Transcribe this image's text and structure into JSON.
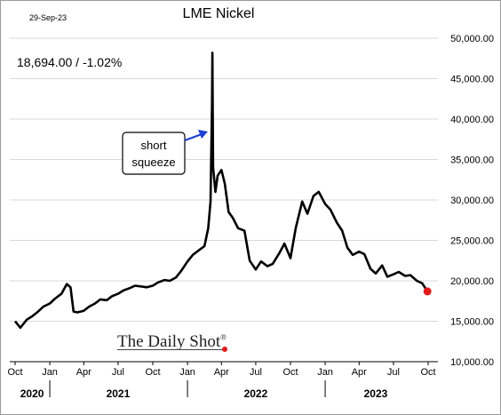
{
  "header": {
    "date_stamp": "29-Sep-23",
    "title": "LME Nickel",
    "readout": "18,694.00  /  -1.02%"
  },
  "annotation": {
    "lines": [
      "short",
      "squeeze"
    ]
  },
  "brand": {
    "name": "The Daily Shot",
    "mark": "®"
  },
  "chart_data": {
    "type": "line",
    "title": "LME Nickel",
    "xlabel": "",
    "ylabel": "",
    "ylim": [
      10000,
      50000
    ],
    "y_ticks": [
      "50,000.00",
      "45,000.00",
      "40,000.00",
      "35,000.00",
      "30,000.00",
      "25,000.00",
      "20,000.00",
      "15,000.00",
      "10,000.00"
    ],
    "x_ticks": [
      "Oct",
      "Jan",
      "Apr",
      "Jul",
      "Oct",
      "Jan",
      "Apr",
      "Jul",
      "Oct",
      "Jan",
      "Apr",
      "Jul",
      "Oct"
    ],
    "year_labels": [
      "2020",
      "2021",
      "2022",
      "2023"
    ],
    "grid": true,
    "last_point_color": "#e01b1b",
    "line_color": "#000000",
    "series": [
      {
        "x": [
          "2020-10-01",
          "2020-10-15",
          "2020-11-01",
          "2020-11-15",
          "2020-12-01",
          "2020-12-15",
          "2021-01-01",
          "2021-01-15",
          "2021-02-01",
          "2021-02-15",
          "2021-02-25",
          "2021-03-05",
          "2021-03-15",
          "2021-04-01",
          "2021-04-15",
          "2021-05-01",
          "2021-05-15",
          "2021-06-01",
          "2021-06-15",
          "2021-07-01",
          "2021-07-15",
          "2021-08-01",
          "2021-08-15",
          "2021-09-01",
          "2021-09-15",
          "2021-10-01",
          "2021-10-15",
          "2021-11-01",
          "2021-11-15",
          "2021-12-01",
          "2021-12-15",
          "2022-01-01",
          "2022-01-15",
          "2022-02-01",
          "2022-02-15",
          "2022-02-25",
          "2022-03-03",
          "2022-03-07",
          "2022-03-08",
          "2022-03-10",
          "2022-03-16",
          "2022-03-22",
          "2022-04-01",
          "2022-04-10",
          "2022-04-20",
          "2022-05-01",
          "2022-05-15",
          "2022-06-01",
          "2022-06-15",
          "2022-07-01",
          "2022-07-15",
          "2022-08-01",
          "2022-08-15",
          "2022-09-01",
          "2022-09-15",
          "2022-10-01",
          "2022-10-15",
          "2022-11-01",
          "2022-11-15",
          "2022-12-01",
          "2022-12-15",
          "2023-01-01",
          "2023-01-15",
          "2023-02-01",
          "2023-02-15",
          "2023-03-01",
          "2023-03-15",
          "2023-04-01",
          "2023-04-15",
          "2023-05-01",
          "2023-05-15",
          "2023-06-01",
          "2023-06-15",
          "2023-07-01",
          "2023-07-15",
          "2023-08-01",
          "2023-08-15",
          "2023-09-01",
          "2023-09-15",
          "2023-09-29"
        ],
        "y": [
          15000,
          14200,
          15200,
          15600,
          16200,
          16800,
          17200,
          17800,
          18400,
          19600,
          19200,
          16200,
          16100,
          16300,
          16800,
          17200,
          17700,
          17600,
          18100,
          18400,
          18800,
          19100,
          19400,
          19300,
          19200,
          19400,
          19800,
          20100,
          20000,
          20400,
          21200,
          22400,
          23200,
          23800,
          24300,
          26500,
          29800,
          42000,
          48200,
          34000,
          31000,
          33000,
          33700,
          32000,
          28500,
          27800,
          26500,
          26200,
          22500,
          21400,
          22400,
          21800,
          22100,
          23400,
          24600,
          22800,
          26500,
          29800,
          28300,
          30500,
          31000,
          29500,
          28800,
          27200,
          26200,
          24100,
          23200,
          23600,
          23300,
          21500,
          20900,
          21900,
          20500,
          20800,
          21100,
          20600,
          20700,
          20000,
          19700,
          18694
        ]
      }
    ]
  }
}
